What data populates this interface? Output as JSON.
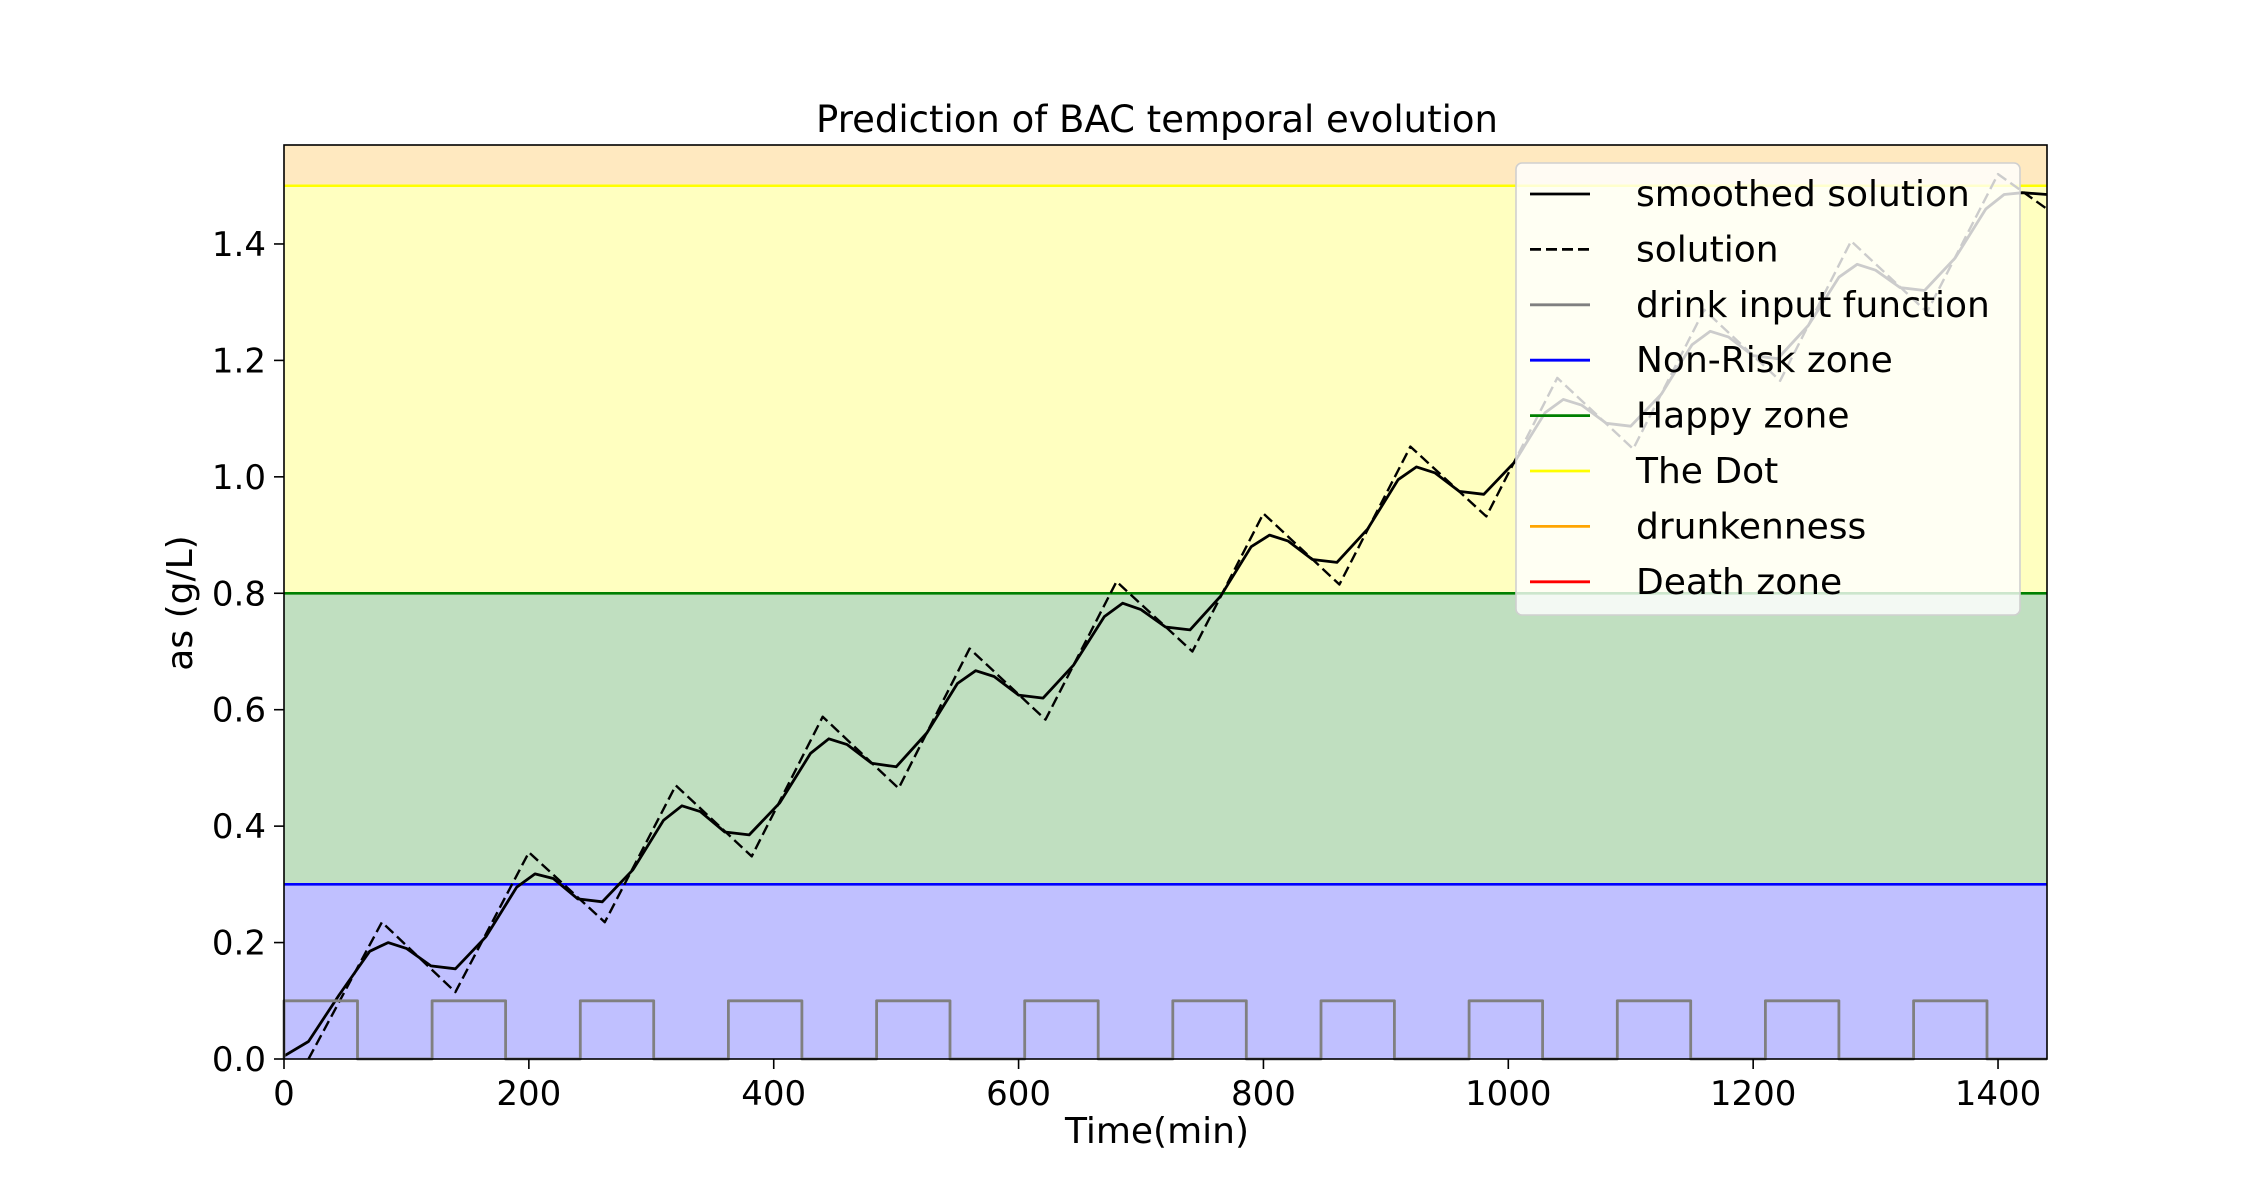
{
  "chart_data": {
    "type": "line",
    "title": "Prediction of BAC temporal evolution",
    "xlabel": "Time(min)",
    "ylabel": "as (g/L)",
    "xlim": [
      0,
      1440
    ],
    "ylim": [
      0,
      1.57
    ],
    "xticks": [
      "0",
      "200",
      "400",
      "600",
      "800",
      "1000",
      "1200",
      "1400"
    ],
    "yticks": [
      "0.0",
      "0.2",
      "0.4",
      "0.6",
      "0.8",
      "1.0",
      "1.2",
      "1.4"
    ],
    "grid": false,
    "legend_position": "top-right",
    "zones": [
      {
        "name": "Non-Risk zone",
        "from": 0,
        "to": 0.3,
        "line_color": "#0000ff",
        "fill_color": "#c0c0ff"
      },
      {
        "name": "Happy zone",
        "from": 0.3,
        "to": 0.8,
        "line_color": "#008000",
        "fill_color": "#c0dfc0"
      },
      {
        "name": "The Dot",
        "from": 0.8,
        "to": 1.5,
        "line_color": "#ffff00",
        "fill_color": "#ffffc0"
      },
      {
        "name": "drunkenness",
        "from": 1.5,
        "to": 1.57,
        "line_color": "#ffa500",
        "fill_color": "#ffe9c0"
      },
      {
        "name": "Death zone",
        "from": null,
        "to": null,
        "line_color": "#ff0000",
        "fill_color": null
      }
    ],
    "series": [
      {
        "name": "smoothed solution",
        "color": "#000000",
        "dash": "solid",
        "x": [
          0,
          20,
          45,
          70,
          85,
          100,
          120,
          140,
          165,
          190,
          205,
          220,
          240,
          260,
          285,
          310,
          325,
          340,
          360,
          380,
          405,
          430,
          445,
          460,
          480,
          500,
          525,
          550,
          565,
          580,
          600,
          620,
          645,
          670,
          685,
          700,
          720,
          740,
          765,
          790,
          805,
          820,
          840,
          860,
          885,
          910,
          925,
          940,
          960,
          980,
          1005,
          1030,
          1045,
          1060,
          1080,
          1100,
          1125,
          1150,
          1165,
          1180,
          1200,
          1220,
          1245,
          1270,
          1285,
          1300,
          1320,
          1340,
          1365,
          1390,
          1405,
          1420,
          1440
        ],
        "y": [
          0.005,
          0.03,
          0.11,
          0.185,
          0.2,
          0.19,
          0.16,
          0.155,
          0.21,
          0.295,
          0.318,
          0.31,
          0.275,
          0.27,
          0.325,
          0.41,
          0.435,
          0.425,
          0.39,
          0.385,
          0.44,
          0.525,
          0.55,
          0.54,
          0.508,
          0.502,
          0.56,
          0.645,
          0.667,
          0.657,
          0.625,
          0.62,
          0.677,
          0.76,
          0.783,
          0.772,
          0.742,
          0.737,
          0.795,
          0.88,
          0.9,
          0.89,
          0.858,
          0.853,
          0.91,
          0.995,
          1.017,
          1.007,
          0.975,
          0.97,
          1.025,
          1.11,
          1.133,
          1.123,
          1.092,
          1.087,
          1.142,
          1.227,
          1.25,
          1.24,
          1.208,
          1.203,
          1.26,
          1.343,
          1.365,
          1.355,
          1.325,
          1.32,
          1.376,
          1.46,
          1.485,
          1.488,
          1.485
        ]
      },
      {
        "name": "solution",
        "color": "#000000",
        "dash": "dashed",
        "x": [
          20,
          80,
          140,
          200,
          262,
          320,
          382,
          440,
          502,
          560,
          622,
          680,
          742,
          800,
          862,
          920,
          982,
          1040,
          1102,
          1160,
          1222,
          1280,
          1342,
          1400,
          1440
        ],
        "y": [
          0.0,
          0.235,
          0.115,
          0.355,
          0.235,
          0.47,
          0.348,
          0.588,
          0.465,
          0.705,
          0.583,
          0.82,
          0.7,
          0.937,
          0.815,
          1.052,
          0.932,
          1.17,
          1.048,
          1.287,
          1.165,
          1.405,
          1.283,
          1.52,
          1.46
        ]
      },
      {
        "name": "drink input function",
        "color": "#808080",
        "dash": "solid",
        "x": [
          0,
          0,
          60,
          60,
          121,
          121,
          181,
          181,
          242,
          242,
          302,
          302,
          363,
          363,
          423,
          423,
          484,
          484,
          544,
          544,
          605,
          605,
          665,
          665,
          726,
          726,
          786,
          786,
          847,
          847,
          907,
          907,
          968,
          968,
          1028,
          1028,
          1089,
          1089,
          1149,
          1149,
          1210,
          1210,
          1270,
          1270,
          1331,
          1331,
          1391,
          1391,
          1440
        ],
        "y": [
          0,
          0.1,
          0.1,
          0,
          0,
          0.1,
          0.1,
          0,
          0,
          0.1,
          0.1,
          0,
          0,
          0.1,
          0.1,
          0,
          0,
          0.1,
          0.1,
          0,
          0,
          0.1,
          0.1,
          0,
          0,
          0.1,
          0.1,
          0,
          0,
          0.1,
          0.1,
          0,
          0,
          0.1,
          0.1,
          0,
          0,
          0.1,
          0.1,
          0,
          0,
          0.1,
          0.1,
          0,
          0,
          0.1,
          0.1,
          0,
          0
        ]
      }
    ],
    "legend": [
      {
        "label": "smoothed solution",
        "color": "#000000",
        "dash": "solid"
      },
      {
        "label": "solution",
        "color": "#000000",
        "dash": "dashed"
      },
      {
        "label": "drink input function",
        "color": "#808080",
        "dash": "solid"
      },
      {
        "label": "Non-Risk zone",
        "color": "#0000ff",
        "dash": "solid"
      },
      {
        "label": "Happy zone",
        "color": "#008000",
        "dash": "solid"
      },
      {
        "label": "The Dot",
        "color": "#ffff00",
        "dash": "solid"
      },
      {
        "label": "drunkenness",
        "color": "#ffa500",
        "dash": "solid"
      },
      {
        "label": "Death zone",
        "color": "#ff0000",
        "dash": "solid"
      }
    ]
  }
}
